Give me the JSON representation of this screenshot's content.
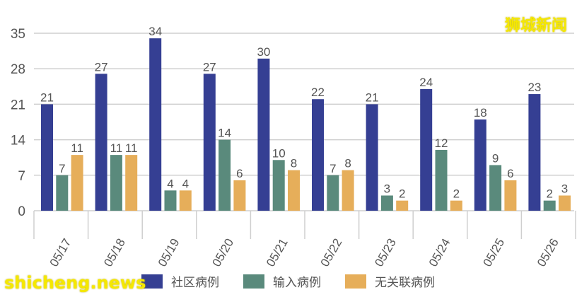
{
  "chart_data": {
    "type": "bar",
    "categories": [
      "05/17",
      "05/18",
      "05/19",
      "05/20",
      "05/21",
      "05/22",
      "05/23",
      "05/24",
      "05/25",
      "05/26"
    ],
    "series": [
      {
        "name": "社区病例",
        "color": "#353f93",
        "values": [
          21,
          27,
          34,
          27,
          30,
          22,
          21,
          24,
          18,
          23
        ]
      },
      {
        "name": "输入病例",
        "color": "#5a8a7c",
        "values": [
          7,
          11,
          4,
          14,
          10,
          7,
          3,
          12,
          9,
          2
        ]
      },
      {
        "name": "无关联病例",
        "color": "#e6ae5a",
        "values": [
          11,
          11,
          4,
          6,
          8,
          8,
          2,
          2,
          6,
          3
        ]
      }
    ],
    "yticks": [
      0,
      7,
      14,
      21,
      28,
      35
    ],
    "ylim": [
      0,
      35
    ],
    "grid": true,
    "legend": "bottom"
  },
  "watermarks": {
    "top": "狮城新闻",
    "bottom": "shicheng.news"
  }
}
